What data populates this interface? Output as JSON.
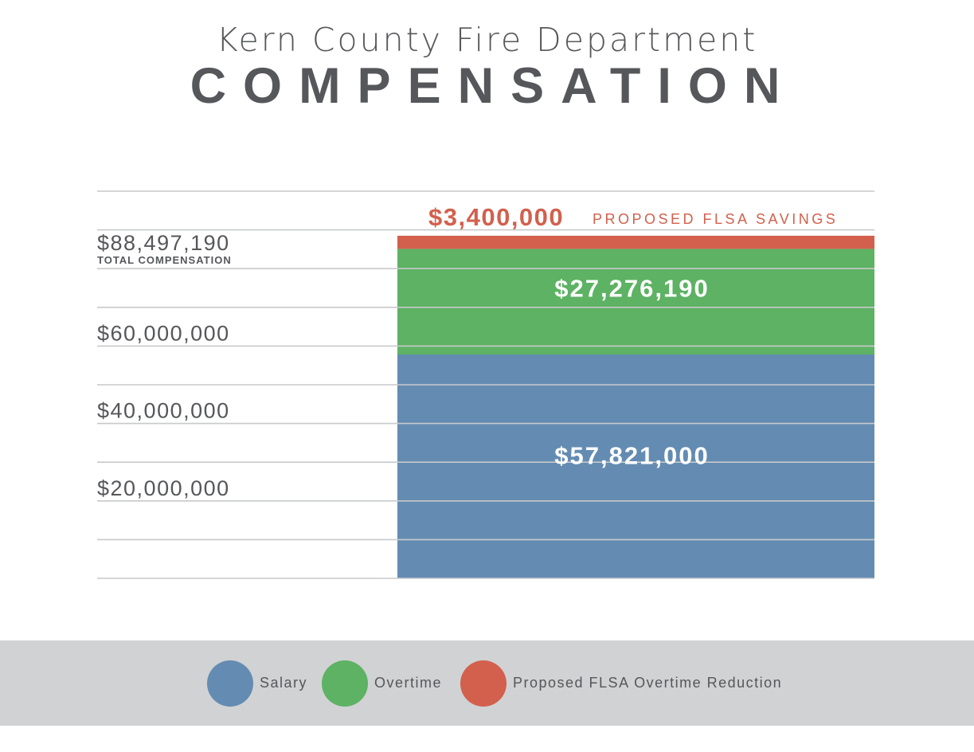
{
  "title": {
    "top": "Kern County Fire Department",
    "main": "COMPENSATION"
  },
  "chart_data": {
    "type": "bar",
    "stacked": true,
    "categories": [
      ""
    ],
    "series": [
      {
        "name": "Salary",
        "values": [
          57821000
        ],
        "color": "#648cb2",
        "label": "$57,821,000"
      },
      {
        "name": "Overtime",
        "values": [
          27276190
        ],
        "color": "#5db263",
        "label": "$27,276,190"
      },
      {
        "name": "Proposed FLSA Overtime Reduction",
        "values": [
          3400000
        ],
        "color": "#d2604d",
        "label": "$3,400,000"
      }
    ],
    "total": {
      "value": 88497190,
      "label": "$88,497,190",
      "sublabel": "TOTAL COMPENSATION"
    },
    "savings_annotation": {
      "value": "$3,400,000",
      "text": "PROPOSED FLSA SAVINGS"
    },
    "yticks": [
      {
        "value": 20000000,
        "label": "$20,000,000"
      },
      {
        "value": 40000000,
        "label": "$40,000,000"
      },
      {
        "value": 60000000,
        "label": "$60,000,000"
      }
    ],
    "ylim": [
      0,
      100000000
    ],
    "gridline_step": 10000000,
    "grid": true,
    "legend_position": "bottom"
  },
  "legend": [
    {
      "label": "Salary",
      "color": "#648cb2"
    },
    {
      "label": "Overtime",
      "color": "#5db263"
    },
    {
      "label": "Proposed FLSA Overtime Reduction",
      "color": "#d2604d"
    }
  ]
}
